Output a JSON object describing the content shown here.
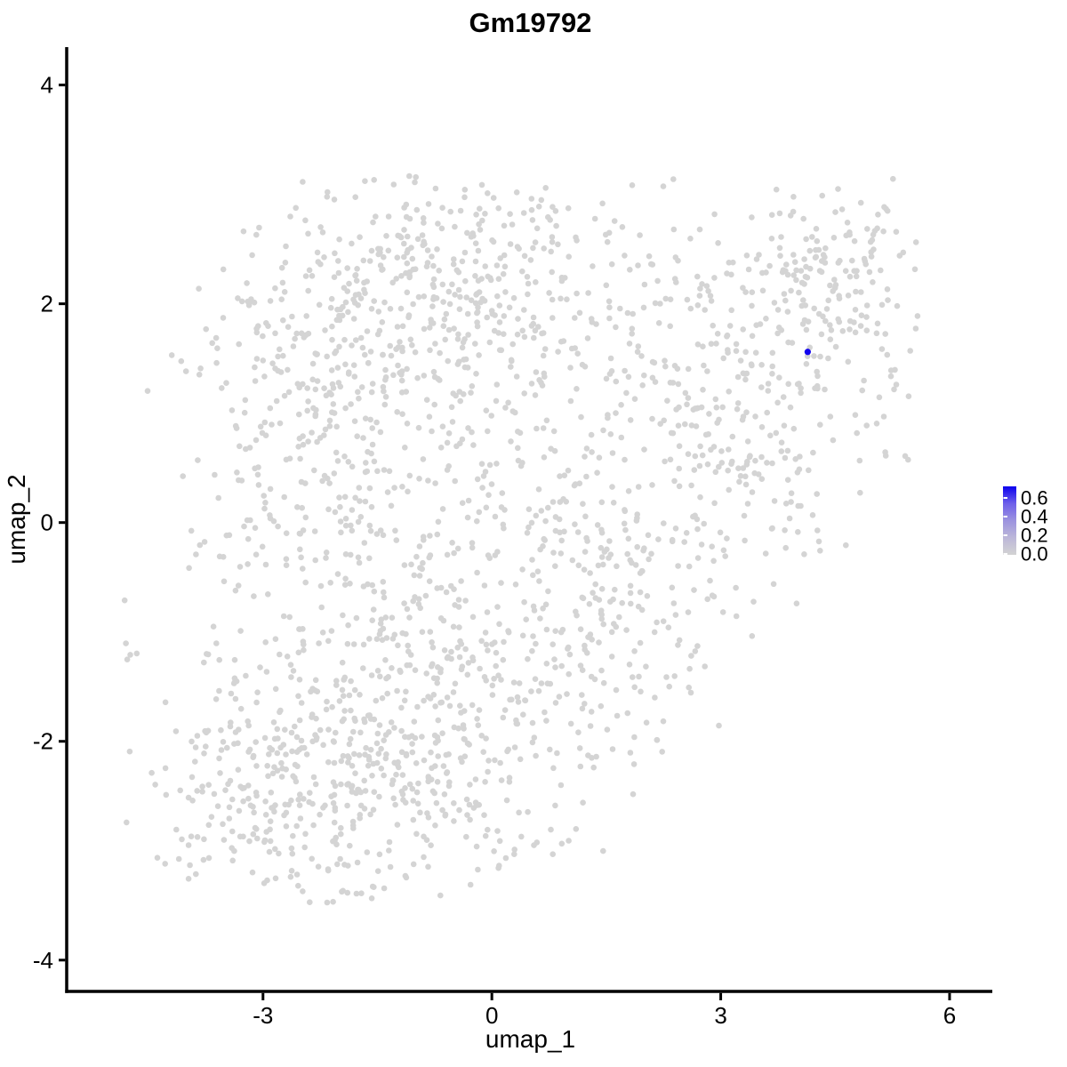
{
  "figure": {
    "title": "Gm19792"
  },
  "chart_data": {
    "type": "scatter",
    "title": "Gm19792",
    "xlabel": "umap_1",
    "ylabel": "umap_2",
    "xlim": [
      -5.55,
      6.56
    ],
    "ylim": [
      -4.27,
      4.33
    ],
    "x_ticks": [
      -3,
      0,
      3,
      6
    ],
    "x_tick_labels": [
      "-3",
      "0",
      "3",
      "6"
    ],
    "y_ticks": [
      4,
      2,
      0,
      -2,
      -4
    ],
    "y_tick_labels": [
      "4",
      "2",
      "0",
      "-2",
      "-4"
    ],
    "grid": false,
    "panel_background": "#ffffff",
    "axis_color": "#000000",
    "point_color": "#d4d4d4",
    "point_radius": 3.3,
    "legend": {
      "position": "right",
      "tick_labels": [
        "0.6",
        "0.4",
        "0.2",
        "0.0"
      ],
      "tick_values": [
        0.6,
        0.4,
        0.2,
        0.0
      ],
      "value_min": 0.0,
      "value_max": 0.72,
      "color_low": "#d3d3d3",
      "color_high": "#0b00ee",
      "gradient_stops": [
        "#0b00ee",
        "#6e5fea",
        "#9c93df",
        "#bcb7d9",
        "#d3d3d3"
      ]
    },
    "highlighted_point": {
      "x": 4.14,
      "y": 1.56,
      "value": 0.7,
      "color": "#1203ee",
      "radius": 3.6
    },
    "background_points": {
      "seed": 7,
      "count_estimate": 2250,
      "clusters": [
        {
          "name": "upper-left-main",
          "cx": -1.0,
          "cy": 2.0,
          "sx": 1.35,
          "sy": 0.6,
          "n": 380
        },
        {
          "name": "upper-top-mid",
          "cx": 0.0,
          "cy": 2.6,
          "sx": 0.8,
          "sy": 0.35,
          "n": 100
        },
        {
          "name": "left-mid",
          "cx": -2.5,
          "cy": 0.6,
          "sx": 0.75,
          "sy": 0.9,
          "n": 210
        },
        {
          "name": "center",
          "cx": -0.5,
          "cy": 0.0,
          "sx": 1.2,
          "sy": 0.9,
          "n": 230
        },
        {
          "name": "lower-left-dense",
          "cx": -2.4,
          "cy": -2.3,
          "sx": 0.95,
          "sy": 0.6,
          "n": 380
        },
        {
          "name": "lower-mid",
          "cx": -0.6,
          "cy": -1.8,
          "sx": 0.95,
          "sy": 0.8,
          "n": 300
        },
        {
          "name": "diagonal-band",
          "cx": 1.5,
          "cy": -0.8,
          "sx": 0.85,
          "sy": 0.75,
          "n": 190
        },
        {
          "name": "right-main",
          "cx": 3.6,
          "cy": 0.8,
          "sx": 0.95,
          "sy": 1.0,
          "n": 300
        },
        {
          "name": "right-upper-arm",
          "cx": 4.45,
          "cy": 2.35,
          "sx": 0.55,
          "sy": 0.42,
          "n": 140
        },
        {
          "name": "bridge",
          "cx": 1.9,
          "cy": 1.6,
          "sx": 0.75,
          "sy": 0.65,
          "n": 90
        },
        {
          "name": "left-outliers",
          "cx": -4.75,
          "cy": -1.25,
          "sx": 0.08,
          "sy": 0.1,
          "n": 4
        }
      ],
      "clip": {
        "x_min": -5.0,
        "x_max": 5.6,
        "y_min": -3.5,
        "y_max": 3.18,
        "x_minus_y_max": 4.9,
        "y_minus_x_max": 6.0
      }
    }
  }
}
